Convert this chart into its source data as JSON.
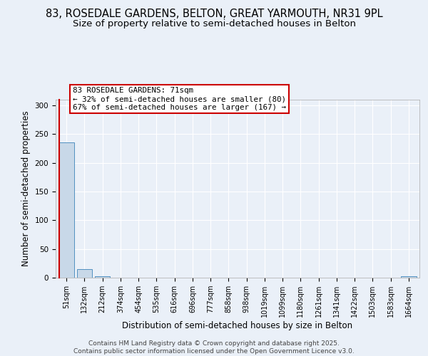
{
  "title": "83, ROSEDALE GARDENS, BELTON, GREAT YARMOUTH, NR31 9PL",
  "subtitle": "Size of property relative to semi-detached houses in Belton",
  "xlabel": "Distribution of semi-detached houses by size in Belton",
  "ylabel": "Number of semi-detached properties",
  "bar_color": "#c8d8e8",
  "bar_edge_color": "#5090c0",
  "categories": [
    "51sqm",
    "132sqm",
    "212sqm",
    "374sqm",
    "454sqm",
    "535sqm",
    "616sqm",
    "696sqm",
    "777sqm",
    "858sqm",
    "938sqm",
    "1019sqm",
    "1099sqm",
    "1180sqm",
    "1261sqm",
    "1341sqm",
    "1422sqm",
    "1503sqm",
    "1583sqm",
    "1664sqm"
  ],
  "values": [
    235,
    15,
    3,
    0,
    0,
    0,
    0,
    0,
    0,
    0,
    0,
    0,
    0,
    0,
    0,
    0,
    0,
    0,
    0,
    2
  ],
  "ylim": [
    0,
    310
  ],
  "yticks": [
    0,
    50,
    100,
    150,
    200,
    250,
    300
  ],
  "annotation_text": "83 ROSEDALE GARDENS: 71sqm\n← 32% of semi-detached houses are smaller (80)\n67% of semi-detached houses are larger (167) →",
  "annotation_color": "#cc0000",
  "vline_color": "#cc0000",
  "footer_text": "Contains HM Land Registry data © Crown copyright and database right 2025.\nContains public sector information licensed under the Open Government Licence v3.0.",
  "background_color": "#eaf0f8",
  "plot_background_color": "#eaf0f8",
  "grid_color": "#ffffff",
  "title_fontsize": 10.5,
  "subtitle_fontsize": 9.5,
  "tick_fontsize": 7,
  "ylabel_fontsize": 8.5,
  "xlabel_fontsize": 8.5,
  "footer_fontsize": 6.5
}
